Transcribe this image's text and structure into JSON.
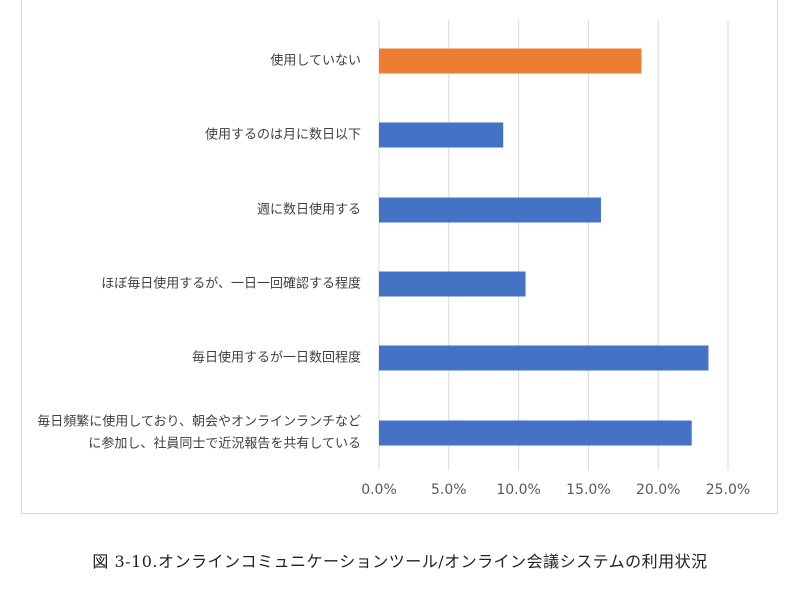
{
  "chart_data": {
    "type": "bar",
    "orientation": "horizontal",
    "categories": [
      "使用していない",
      "使用するのは月に数日以下",
      "週に数日使用する",
      "ほぼ毎日使用するが、一日一回確認する程度",
      "毎日使用するが一日数回程度",
      "毎日頻繁に使用しており、朝会やオンラインランチなどに参加し、社員同士で近況報告を共有している"
    ],
    "category_lines": [
      [
        "使用していない"
      ],
      [
        "使用するのは月に数日以下"
      ],
      [
        "週に数日使用する"
      ],
      [
        "ほぼ毎日使用するが、一日一回確認する程度"
      ],
      [
        "毎日使用するが一日数回程度"
      ],
      [
        "毎日頻繁に使用しており、朝会やオンラインランチなど",
        "に参加し、社員同士で近況報告を共有している"
      ]
    ],
    "values": [
      0.188,
      0.089,
      0.159,
      0.105,
      0.236,
      0.224
    ],
    "bar_colors": [
      "#ED7D31",
      "#4472C4",
      "#4472C4",
      "#4472C4",
      "#4472C4",
      "#4472C4"
    ],
    "xlim": [
      0,
      0.25
    ],
    "xticks": [
      0,
      0.05,
      0.1,
      0.15,
      0.2,
      0.25
    ],
    "xtick_labels": [
      "0.0%",
      "5.0%",
      "10.0%",
      "15.0%",
      "20.0%",
      "25.0%"
    ],
    "grid": true,
    "gridline_color": "#d9d9d9",
    "title": "",
    "xlabel": "",
    "ylabel": ""
  },
  "caption": "図 3-10.オンラインコミュニケーションツール/オンライン会議システムの利用状況"
}
